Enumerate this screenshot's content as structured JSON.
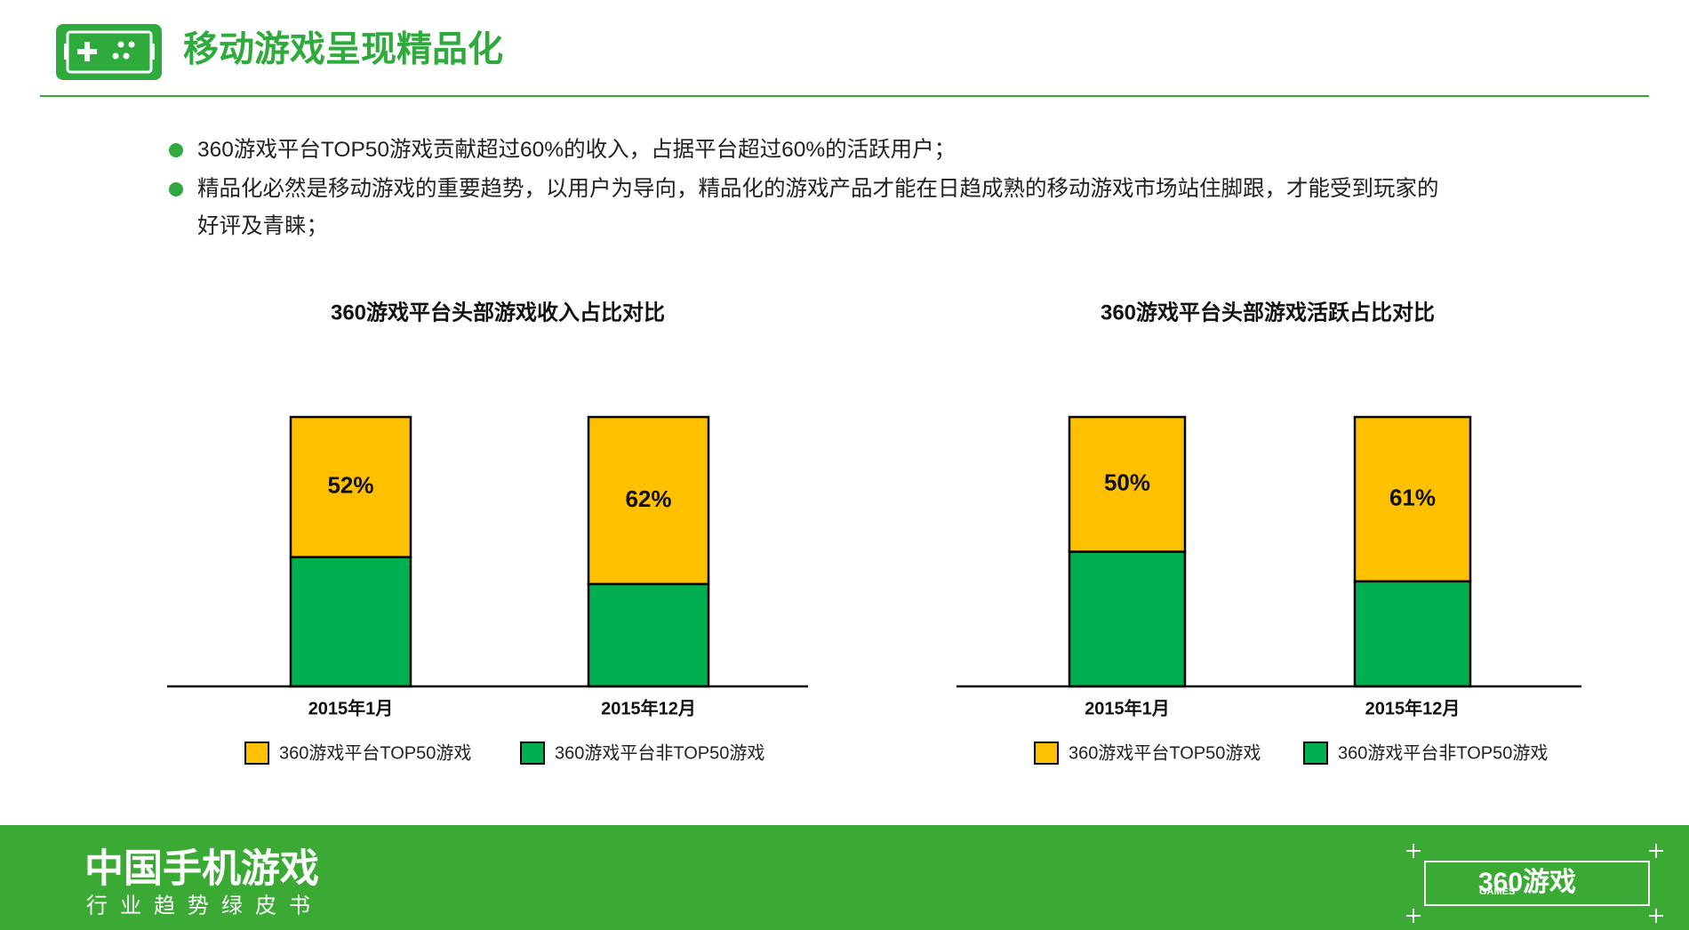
{
  "header": {
    "title": "移动游戏呈现精品化"
  },
  "bullets": [
    "360游戏平台TOP50游戏贡献超过60%的收入，占据平台超过60%的活跃用户；",
    "精品化必然是移动游戏的重要趋势，以用户为导向，精品化的游戏产品才能在日趋成熟的移动游戏市场站住脚跟，才能受到玩家的好评及青睐；"
  ],
  "chart_data": [
    {
      "type": "bar",
      "stacked": true,
      "title": "360游戏平台头部游戏收入占比对比",
      "categories": [
        "2015年1月",
        "2015年12月"
      ],
      "series": [
        {
          "name": "360游戏平台TOP50游戏",
          "color": "#ffc000",
          "values": [
            52,
            62
          ],
          "value_labels": [
            "52%",
            "62%"
          ]
        },
        {
          "name": "360游戏平台非TOP50游戏",
          "color": "#00b050",
          "values": [
            48,
            38
          ]
        }
      ]
    },
    {
      "type": "bar",
      "stacked": true,
      "title": "360游戏平台头部游戏活跃占比对比",
      "categories": [
        "2015年1月",
        "2015年12月"
      ],
      "series": [
        {
          "name": "360游戏平台TOP50游戏",
          "color": "#ffc000",
          "values": [
            50,
            61
          ],
          "value_labels": [
            "50%",
            "61%"
          ]
        },
        {
          "name": "360游戏平台非TOP50游戏",
          "color": "#00b050",
          "values": [
            50,
            39
          ]
        }
      ]
    }
  ],
  "footer": {
    "title": "中国手机游戏",
    "subtitle": "行业趋势绿皮书",
    "logo_small": "GAMES",
    "logo": "360游戏"
  }
}
